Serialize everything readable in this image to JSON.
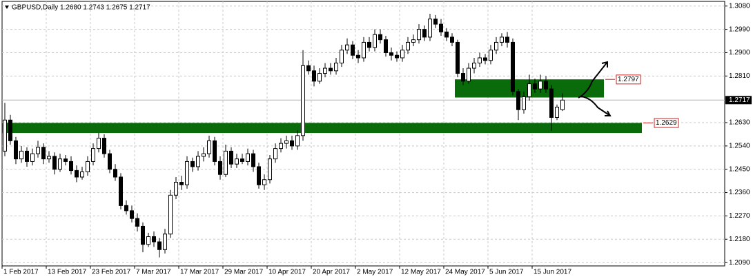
{
  "chart_data": {
    "type": "candlestick",
    "title": "GBPUSD,Daily  1.2680 1.2743 1.2675 1.2717",
    "categories": [
      "1 Feb 2017",
      null,
      null,
      null,
      null,
      null,
      null,
      null,
      "13 Feb 2017",
      null,
      null,
      null,
      null,
      null,
      null,
      null,
      "23 Feb 2017",
      null,
      null,
      null,
      null,
      null,
      null,
      null,
      "7 Mar 2017",
      null,
      null,
      null,
      null,
      null,
      null,
      null,
      "17 Mar 2017",
      null,
      null,
      null,
      null,
      null,
      null,
      null,
      "29 Mar 2017",
      null,
      null,
      null,
      null,
      null,
      null,
      null,
      "10 Apr 2017",
      null,
      null,
      null,
      null,
      null,
      null,
      null,
      "20 Apr 2017",
      null,
      null,
      null,
      null,
      null,
      null,
      null,
      "2 May 2017",
      null,
      null,
      null,
      null,
      null,
      null,
      null,
      "12 May 2017",
      null,
      null,
      null,
      null,
      null,
      null,
      null,
      "24 May 2017",
      null,
      null,
      null,
      null,
      null,
      null,
      null,
      "5 Jun 2017",
      null,
      null,
      null,
      null,
      null,
      null,
      null,
      "15 Jun 2017",
      null,
      null,
      null,
      null,
      null
    ],
    "open": [
      1.252,
      1.264,
      1.256,
      1.249,
      1.252,
      1.248,
      1.251,
      1.2535,
      1.249,
      1.25,
      1.245,
      1.249,
      1.248,
      1.2445,
      1.242,
      1.244,
      1.248,
      1.253,
      1.257,
      1.251,
      1.245,
      1.242,
      1.231,
      1.229,
      1.226,
      1.223,
      1.216,
      1.219,
      1.217,
      1.214,
      1.22,
      1.235,
      1.24,
      1.239,
      1.248,
      1.246,
      1.25,
      1.251,
      1.256,
      1.248,
      1.243,
      1.252,
      1.247,
      1.249,
      1.248,
      1.251,
      1.246,
      1.239,
      1.241,
      1.249,
      1.253,
      1.255,
      1.256,
      1.254,
      1.258,
      1.285,
      1.283,
      1.279,
      1.282,
      1.284,
      1.283,
      1.286,
      1.291,
      1.293,
      1.289,
      1.288,
      1.294,
      1.292,
      1.297,
      1.295,
      1.29,
      1.289,
      1.288,
      1.291,
      1.294,
      1.295,
      1.299,
      1.296,
      1.303,
      1.301,
      1.298,
      1.296,
      1.294,
      1.282,
      1.279,
      1.284,
      1.286,
      1.288,
      1.287,
      1.291,
      1.294,
      1.296,
      1.294,
      1.275,
      1.268,
      1.273,
      1.278,
      1.276,
      1.279,
      1.276,
      1.265,
      1.268
    ],
    "high": [
      1.2706,
      1.266,
      1.2575,
      1.254,
      1.2535,
      1.253,
      1.256,
      1.255,
      1.252,
      1.2515,
      1.251,
      1.2505,
      1.25,
      1.2465,
      1.246,
      1.25,
      1.255,
      1.259,
      1.2585,
      1.2525,
      1.247,
      1.2435,
      1.233,
      1.231,
      1.228,
      1.2245,
      1.2205,
      1.221,
      1.2185,
      1.222,
      1.237,
      1.242,
      1.2425,
      1.25,
      1.2495,
      1.252,
      1.2535,
      1.258,
      1.2575,
      1.25,
      1.2545,
      1.2535,
      1.251,
      1.251,
      1.253,
      1.2525,
      1.2475,
      1.243,
      1.2505,
      1.255,
      1.257,
      1.258,
      1.258,
      1.26,
      1.291,
      1.287,
      1.285,
      1.284,
      1.286,
      1.286,
      1.288,
      1.293,
      1.2955,
      1.2945,
      1.291,
      1.296,
      1.296,
      1.299,
      1.299,
      1.2965,
      1.292,
      1.2905,
      1.293,
      1.296,
      1.297,
      1.301,
      1.3005,
      1.305,
      1.3045,
      1.303,
      1.2995,
      1.2975,
      1.295,
      1.284,
      1.286,
      1.288,
      1.29,
      1.2895,
      1.293,
      1.296,
      1.2975,
      1.298,
      1.2955,
      1.276,
      1.275,
      1.2815,
      1.28,
      1.2815,
      1.281,
      1.2775,
      1.27,
      1.2743
    ],
    "low": [
      1.25,
      1.2545,
      1.247,
      1.2475,
      1.246,
      1.2465,
      1.2495,
      1.247,
      1.2475,
      1.243,
      1.244,
      1.2465,
      1.243,
      1.24,
      1.241,
      1.2425,
      1.2465,
      1.2515,
      1.2495,
      1.2435,
      1.2405,
      1.2295,
      1.2275,
      1.2245,
      1.221,
      1.213,
      1.215,
      1.215,
      1.211,
      1.2125,
      1.2185,
      1.2335,
      1.237,
      1.2375,
      1.244,
      1.2445,
      1.248,
      1.2495,
      1.2465,
      1.241,
      1.242,
      1.2455,
      1.2455,
      1.247,
      1.2465,
      1.244,
      1.2375,
      1.237,
      1.2395,
      1.2475,
      1.2515,
      1.253,
      1.2525,
      1.2525,
      1.256,
      1.2815,
      1.277,
      1.278,
      1.2805,
      1.2815,
      1.2815,
      1.2845,
      1.2895,
      1.2875,
      1.286,
      1.2865,
      1.2905,
      1.2905,
      1.2935,
      1.2885,
      1.287,
      1.2865,
      1.2865,
      1.2895,
      1.2925,
      1.2935,
      1.2945,
      1.2945,
      1.2995,
      1.2965,
      1.2945,
      1.2925,
      1.2805,
      1.2775,
      1.278,
      1.282,
      1.2845,
      1.2855,
      1.2855,
      1.2895,
      1.2925,
      1.292,
      1.2735,
      1.264,
      1.2665,
      1.2715,
      1.2745,
      1.2745,
      1.2745,
      1.2598,
      1.264,
      1.2675
    ],
    "close": [
      1.264,
      1.256,
      1.249,
      1.252,
      1.248,
      1.251,
      1.2535,
      1.249,
      1.25,
      1.245,
      1.249,
      1.248,
      1.2445,
      1.242,
      1.244,
      1.248,
      1.253,
      1.257,
      1.251,
      1.245,
      1.242,
      1.231,
      1.229,
      1.226,
      1.223,
      1.216,
      1.219,
      1.217,
      1.214,
      1.22,
      1.235,
      1.24,
      1.239,
      1.248,
      1.246,
      1.25,
      1.251,
      1.256,
      1.248,
      1.243,
      1.252,
      1.247,
      1.249,
      1.248,
      1.251,
      1.246,
      1.239,
      1.241,
      1.249,
      1.253,
      1.255,
      1.256,
      1.254,
      1.258,
      1.285,
      1.283,
      1.279,
      1.282,
      1.284,
      1.283,
      1.286,
      1.291,
      1.293,
      1.289,
      1.288,
      1.294,
      1.292,
      1.297,
      1.295,
      1.29,
      1.289,
      1.288,
      1.291,
      1.294,
      1.295,
      1.299,
      1.296,
      1.303,
      1.301,
      1.298,
      1.296,
      1.294,
      1.282,
      1.279,
      1.284,
      1.286,
      1.288,
      1.287,
      1.291,
      1.294,
      1.296,
      1.294,
      1.275,
      1.268,
      1.273,
      1.278,
      1.276,
      1.279,
      1.276,
      1.265,
      1.269,
      1.2717
    ],
    "up_color": "#ffffff",
    "down_color": "#000000",
    "zone_color": "#0a6b0a",
    "level_color": "#d02020",
    "zones": [
      {
        "top": 1.2797,
        "bottom": 1.2727
      },
      {
        "top": 1.2629,
        "bottom": 1.259
      }
    ],
    "last_price": 1.2717,
    "ylim": [
      1.2077,
      1.3098
    ],
    "yticks": [
      {
        "value": 1.308,
        "label": "1.3080"
      },
      {
        "value": 1.299,
        "label": "1.2990"
      },
      {
        "value": 1.29,
        "label": "1.2900"
      },
      {
        "value": 1.281,
        "label": "1.2810"
      },
      {
        "value": 1.263,
        "label": "1.2630"
      },
      {
        "value": 1.254,
        "label": "1.2540"
      },
      {
        "value": 1.245,
        "label": "1.2450"
      },
      {
        "value": 1.236,
        "label": "1.2360"
      },
      {
        "value": 1.227,
        "label": "1.2270"
      },
      {
        "value": 1.218,
        "label": "1.2180"
      },
      {
        "value": 1.209,
        "label": "1.2090"
      }
    ],
    "grid": true
  }
}
